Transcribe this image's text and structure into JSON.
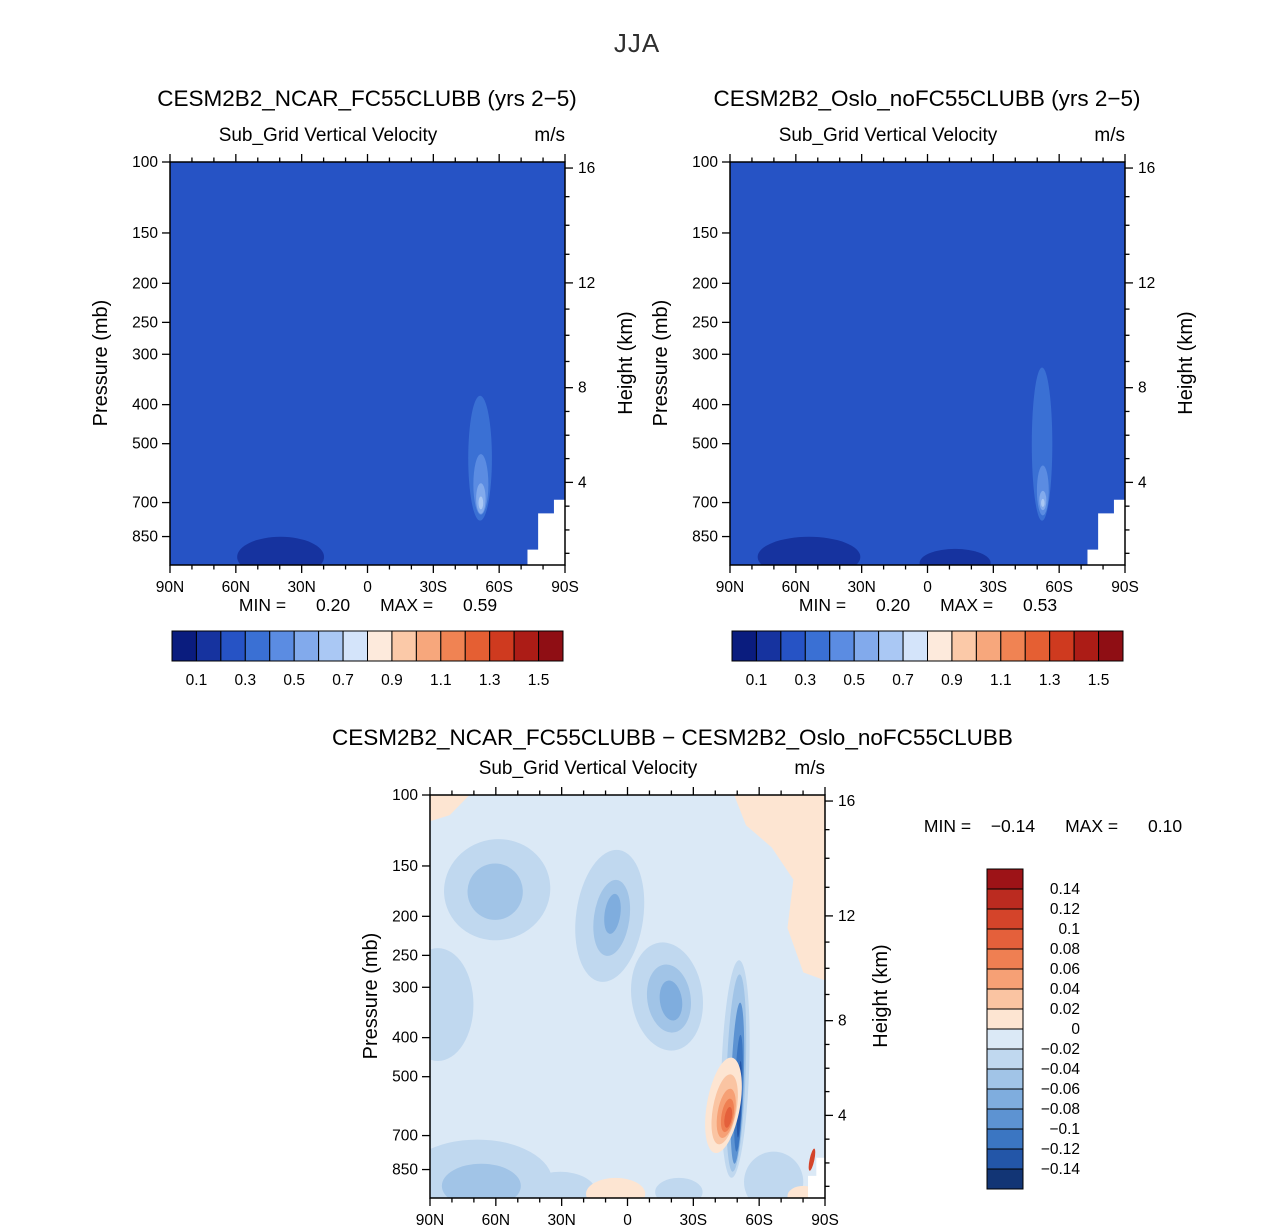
{
  "page": {
    "title": "JJA"
  },
  "palettes": {
    "velocity": [
      "#0a1c7e",
      "#16339f",
      "#2653c5",
      "#3a70d4",
      "#5b8ce2",
      "#82aaec",
      "#aac8f4",
      "#d4e4fa",
      "#fdeadc",
      "#fbc9a8",
      "#f7a77c",
      "#f08353",
      "#e55f33",
      "#cf3a1f",
      "#ac1c16",
      "#8f0e14"
    ],
    "difference": [
      "#9d1317",
      "#bb2b20",
      "#d4442a",
      "#e4603b",
      "#ef7f52",
      "#f6a075",
      "#fac4a2",
      "#fde5d2",
      "#dbe9f6",
      "#c0d8ef",
      "#a1c4e7",
      "#7fadde",
      "#5d93d2",
      "#3b76c2",
      "#2356a8",
      "#123575"
    ]
  },
  "chart_data": [
    {
      "id": "ncar",
      "type": "contour",
      "title": "CESM2B2_NCAR_FC55CLUBB (yrs 2−5)",
      "subtitle_left": "Sub_Grid Vertical Velocity",
      "subtitle_right": "m/s",
      "stats": {
        "min_label": "MIN =",
        "min_value": "0.20",
        "max_label": "MAX =",
        "max_value": "0.59"
      },
      "x_axis": {
        "ticks": [
          "90N",
          "60N",
          "30N",
          "0",
          "30S",
          "60S",
          "90S"
        ],
        "minor_step_deg": 10
      },
      "y_left": {
        "label": "Pressure (mb)",
        "ticks": [
          100,
          150,
          200,
          250,
          300,
          400,
          500,
          700,
          850
        ]
      },
      "y_right": {
        "label": "Height (km)",
        "ticks": [
          {
            "v": "16",
            "f": 0.015
          },
          {
            "v": "12",
            "f": 0.3
          },
          {
            "v": "8",
            "f": 0.56
          },
          {
            "v": "4",
            "f": 0.795
          }
        ],
        "minor_f": [
          0.086,
          0.157,
          0.229,
          0.365,
          0.43,
          0.495,
          0.619,
          0.678,
          0.736,
          0.854,
          0.913,
          0.971
        ]
      },
      "levels": [
        0.1,
        0.2,
        0.3,
        0.4,
        0.5,
        0.6,
        0.7,
        0.8,
        0.9,
        1.0,
        1.1,
        1.2,
        1.3,
        1.4,
        1.5
      ],
      "palette": "velocity",
      "base_color_index": 2,
      "colorbar": {
        "orientation": "horizontal",
        "labels": [
          "0.1",
          "0.3",
          "0.5",
          "0.7",
          "0.9",
          "1.1",
          "1.3",
          "1.5"
        ],
        "boundary_idx": [
          1,
          3,
          5,
          7,
          9,
          11,
          13,
          15
        ]
      },
      "features": [
        {
          "shape": "ellipse",
          "cx": 0.28,
          "cy": 0.98,
          "rx": 0.11,
          "ry": 0.05,
          "ci": 1
        },
        {
          "shape": "ellipse",
          "cx": 0.785,
          "cy": 0.735,
          "rx": 0.03,
          "ry": 0.155,
          "ci": 3
        },
        {
          "shape": "ellipse",
          "cx": 0.787,
          "cy": 0.8,
          "rx": 0.019,
          "ry": 0.075,
          "ci": 4
        },
        {
          "shape": "ellipse",
          "cx": 0.787,
          "cy": 0.835,
          "rx": 0.012,
          "ry": 0.038,
          "ci": 5
        },
        {
          "shape": "ellipse",
          "cx": 0.787,
          "cy": 0.846,
          "rx": 0.006,
          "ry": 0.016,
          "ci": 6
        },
        {
          "shape": "polygon",
          "points": [
            [
              0.905,
              1
            ],
            [
              0.905,
              0.962
            ],
            [
              0.932,
              0.962
            ],
            [
              0.932,
              0.872
            ],
            [
              0.972,
              0.872
            ],
            [
              0.972,
              0.838
            ],
            [
              1,
              0.838
            ],
            [
              1,
              1
            ]
          ],
          "color": "#ffffff"
        }
      ]
    },
    {
      "id": "oslo",
      "type": "contour",
      "title": "CESM2B2_Oslo_noFC55CLUBB (yrs 2−5)",
      "subtitle_left": "Sub_Grid Vertical Velocity",
      "subtitle_right": "m/s",
      "stats": {
        "min_label": "MIN =",
        "min_value": "0.20",
        "max_label": "MAX =",
        "max_value": "0.53"
      },
      "x_axis": {
        "ticks": [
          "90N",
          "60N",
          "30N",
          "0",
          "30S",
          "60S",
          "90S"
        ],
        "minor_step_deg": 10
      },
      "y_left": {
        "label": "Pressure (mb)",
        "ticks": [
          100,
          150,
          200,
          250,
          300,
          400,
          500,
          700,
          850
        ]
      },
      "y_right": {
        "label": "Height (km)",
        "ticks": [
          {
            "v": "16",
            "f": 0.015
          },
          {
            "v": "12",
            "f": 0.3
          },
          {
            "v": "8",
            "f": 0.56
          },
          {
            "v": "4",
            "f": 0.795
          }
        ],
        "minor_f": [
          0.086,
          0.157,
          0.229,
          0.365,
          0.43,
          0.495,
          0.619,
          0.678,
          0.736,
          0.854,
          0.913,
          0.971
        ]
      },
      "levels": [
        0.1,
        0.2,
        0.3,
        0.4,
        0.5,
        0.6,
        0.7,
        0.8,
        0.9,
        1.0,
        1.1,
        1.2,
        1.3,
        1.4,
        1.5
      ],
      "palette": "velocity",
      "base_color_index": 2,
      "colorbar": {
        "orientation": "horizontal",
        "labels": [
          "0.1",
          "0.3",
          "0.5",
          "0.7",
          "0.9",
          "1.1",
          "1.3",
          "1.5"
        ],
        "boundary_idx": [
          1,
          3,
          5,
          7,
          9,
          11,
          13,
          15
        ]
      },
      "features": [
        {
          "shape": "ellipse",
          "cx": 0.2,
          "cy": 0.98,
          "rx": 0.13,
          "ry": 0.05,
          "ci": 1
        },
        {
          "shape": "ellipse",
          "cx": 0.57,
          "cy": 0.995,
          "rx": 0.09,
          "ry": 0.035,
          "ci": 1
        },
        {
          "shape": "ellipse",
          "cx": 0.79,
          "cy": 0.7,
          "rx": 0.026,
          "ry": 0.19,
          "ci": 3
        },
        {
          "shape": "ellipse",
          "cx": 0.792,
          "cy": 0.815,
          "rx": 0.015,
          "ry": 0.062,
          "ci": 4
        },
        {
          "shape": "ellipse",
          "cx": 0.792,
          "cy": 0.84,
          "rx": 0.009,
          "ry": 0.024,
          "ci": 5
        },
        {
          "shape": "ellipse",
          "cx": 0.792,
          "cy": 0.846,
          "rx": 0.0045,
          "ry": 0.01,
          "ci": 6
        },
        {
          "shape": "polygon",
          "points": [
            [
              0.905,
              1
            ],
            [
              0.905,
              0.962
            ],
            [
              0.932,
              0.962
            ],
            [
              0.932,
              0.872
            ],
            [
              0.972,
              0.872
            ],
            [
              0.972,
              0.838
            ],
            [
              1,
              0.838
            ],
            [
              1,
              1
            ]
          ],
          "color": "#ffffff"
        }
      ]
    },
    {
      "id": "diff",
      "type": "contour",
      "title": "CESM2B2_NCAR_FC55CLUBB − CESM2B2_Oslo_noFC55CLUBB",
      "subtitle_left": "Sub_Grid Vertical Velocity",
      "subtitle_right": "m/s",
      "stats": {
        "min_label": "MIN =",
        "min_value": "−0.14",
        "max_label": "MAX =",
        "max_value": "0.10"
      },
      "x_axis": {
        "ticks": [
          "90N",
          "60N",
          "30N",
          "0",
          "30S",
          "60S",
          "90S"
        ],
        "minor_step_deg": 10
      },
      "y_left": {
        "label": "Pressure (mb)",
        "ticks": [
          100,
          150,
          200,
          250,
          300,
          400,
          500,
          700,
          850
        ]
      },
      "y_right": {
        "label": "Height (km)",
        "ticks": [
          {
            "v": "16",
            "f": 0.015
          },
          {
            "v": "12",
            "f": 0.3
          },
          {
            "v": "8",
            "f": 0.56
          },
          {
            "v": "4",
            "f": 0.795
          }
        ],
        "minor_f": [
          0.086,
          0.157,
          0.229,
          0.365,
          0.43,
          0.495,
          0.619,
          0.678,
          0.736,
          0.854,
          0.913,
          0.971
        ]
      },
      "levels": [
        -0.14,
        -0.12,
        -0.1,
        -0.08,
        -0.06,
        -0.04,
        -0.02,
        0,
        0.02,
        0.04,
        0.06,
        0.08,
        0.1,
        0.12,
        0.14
      ],
      "palette": "difference",
      "base_color_index": 8,
      "colorbar": {
        "orientation": "vertical",
        "labels": [
          "0.14",
          "0.12",
          "0.1",
          "0.08",
          "0.06",
          "0.04",
          "0.02",
          "0",
          "−0.02",
          "−0.04",
          "−0.06",
          "−0.08",
          "−0.1",
          "−0.12",
          "−0.14"
        ]
      },
      "features": [
        {
          "shape": "polygon",
          "points": [
            [
              0,
              0
            ],
            [
              0.1,
              0
            ],
            [
              0.05,
              0.05
            ],
            [
              0,
              0.065
            ]
          ],
          "ci": 7
        },
        {
          "shape": "polygon",
          "points": [
            [
              0.77,
              0
            ],
            [
              1,
              0
            ],
            [
              1,
              0.46
            ],
            [
              0.945,
              0.44
            ],
            [
              0.905,
              0.33
            ],
            [
              0.92,
              0.21
            ],
            [
              0.865,
              0.13
            ],
            [
              0.8,
              0.075
            ]
          ],
          "ci": 7
        },
        {
          "shape": "ellipse",
          "cx": 0.02,
          "cy": 0.52,
          "rx": 0.09,
          "ry": 0.14,
          "ci": 9
        },
        {
          "shape": "ellipse",
          "cx": 0.17,
          "cy": 0.235,
          "rx": 0.135,
          "ry": 0.125,
          "rot": -15,
          "ci": 9
        },
        {
          "shape": "ellipse",
          "cx": 0.165,
          "cy": 0.24,
          "rx": 0.07,
          "ry": 0.07,
          "ci": 10
        },
        {
          "shape": "ellipse",
          "cx": 0.455,
          "cy": 0.3,
          "rx": 0.085,
          "ry": 0.165,
          "rot": 8,
          "ci": 9
        },
        {
          "shape": "ellipse",
          "cx": 0.46,
          "cy": 0.305,
          "rx": 0.045,
          "ry": 0.095,
          "rot": 8,
          "ci": 10
        },
        {
          "shape": "ellipse",
          "cx": 0.462,
          "cy": 0.295,
          "rx": 0.02,
          "ry": 0.05,
          "rot": 8,
          "ci": 11
        },
        {
          "shape": "ellipse",
          "cx": 0.6,
          "cy": 0.5,
          "rx": 0.09,
          "ry": 0.135,
          "rot": -8,
          "ci": 9
        },
        {
          "shape": "ellipse",
          "cx": 0.605,
          "cy": 0.505,
          "rx": 0.055,
          "ry": 0.085,
          "rot": -8,
          "ci": 10
        },
        {
          "shape": "ellipse",
          "cx": 0.61,
          "cy": 0.51,
          "rx": 0.028,
          "ry": 0.05,
          "rot": -8,
          "ci": 11
        },
        {
          "shape": "ellipse",
          "cx": 0.12,
          "cy": 0.96,
          "rx": 0.19,
          "ry": 0.105,
          "ci": 9
        },
        {
          "shape": "ellipse",
          "cx": 0.13,
          "cy": 0.97,
          "rx": 0.1,
          "ry": 0.055,
          "ci": 10
        },
        {
          "shape": "ellipse",
          "cx": 0.33,
          "cy": 0.985,
          "rx": 0.09,
          "ry": 0.05,
          "ci": 9
        },
        {
          "shape": "ellipse",
          "cx": 0.773,
          "cy": 0.68,
          "rx": 0.035,
          "ry": 0.27,
          "rot": 2,
          "ci": 9
        },
        {
          "shape": "ellipse",
          "cx": 0.775,
          "cy": 0.69,
          "rx": 0.024,
          "ry": 0.245,
          "rot": 2,
          "ci": 10
        },
        {
          "shape": "ellipse",
          "cx": 0.778,
          "cy": 0.715,
          "rx": 0.016,
          "ry": 0.2,
          "rot": 2,
          "ci": 12
        },
        {
          "shape": "ellipse",
          "cx": 0.781,
          "cy": 0.74,
          "rx": 0.01,
          "ry": 0.145,
          "rot": 2,
          "ci": 13
        },
        {
          "shape": "ellipse",
          "cx": 0.783,
          "cy": 0.755,
          "rx": 0.0055,
          "ry": 0.095,
          "rot": 2,
          "ci": 14
        },
        {
          "shape": "ellipse",
          "cx": 0.743,
          "cy": 0.77,
          "rx": 0.042,
          "ry": 0.12,
          "rot": 10,
          "ci": 7
        },
        {
          "shape": "ellipse",
          "cx": 0.746,
          "cy": 0.78,
          "rx": 0.03,
          "ry": 0.088,
          "rot": 10,
          "ci": 6
        },
        {
          "shape": "ellipse",
          "cx": 0.75,
          "cy": 0.79,
          "rx": 0.022,
          "ry": 0.062,
          "rot": 10,
          "ci": 5
        },
        {
          "shape": "ellipse",
          "cx": 0.753,
          "cy": 0.795,
          "rx": 0.015,
          "ry": 0.042,
          "rot": 10,
          "ci": 4
        },
        {
          "shape": "ellipse",
          "cx": 0.755,
          "cy": 0.8,
          "rx": 0.009,
          "ry": 0.026,
          "rot": 10,
          "ci": 3
        },
        {
          "shape": "ellipse",
          "cx": 0.47,
          "cy": 0.99,
          "rx": 0.075,
          "ry": 0.04,
          "ci": 7
        },
        {
          "shape": "ellipse",
          "cx": 0.63,
          "cy": 0.985,
          "rx": 0.06,
          "ry": 0.035,
          "ci": 9
        },
        {
          "shape": "ellipse",
          "cx": 0.87,
          "cy": 0.96,
          "rx": 0.075,
          "ry": 0.075,
          "ci": 9
        },
        {
          "shape": "ellipse",
          "cx": 0.945,
          "cy": 0.995,
          "rx": 0.04,
          "ry": 0.025,
          "ci": 7
        },
        {
          "shape": "ellipse",
          "cx": 0.967,
          "cy": 0.905,
          "rx": 0.006,
          "ry": 0.028,
          "rot": 12,
          "ci": 2
        },
        {
          "shape": "polygon",
          "points": [
            [
              0.957,
              1
            ],
            [
              0.957,
              0.945
            ],
            [
              0.978,
              0.945
            ],
            [
              0.978,
              0.9
            ],
            [
              1,
              0.9
            ],
            [
              1,
              1
            ]
          ],
          "color": "#ffffff"
        }
      ]
    }
  ]
}
